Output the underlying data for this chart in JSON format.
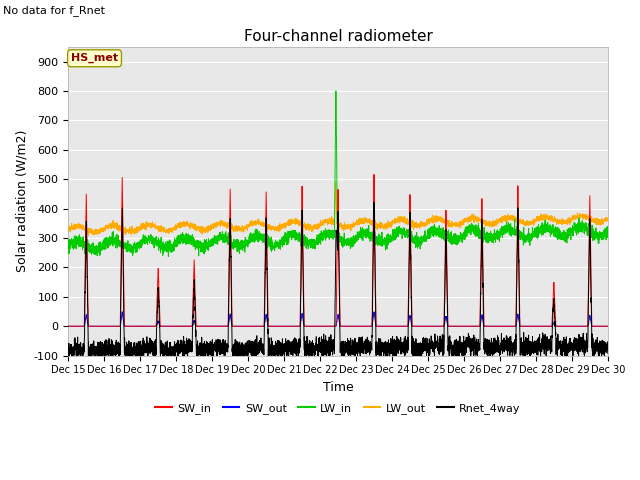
{
  "title": "Four-channel radiometer",
  "subtitle": "No data for f_Rnet",
  "ylabel": "Solar radiation (W/m2)",
  "xlabel": "Time",
  "station_label": "HS_met",
  "ylim": [
    -100,
    950
  ],
  "yticks": [
    -100,
    0,
    100,
    200,
    300,
    400,
    500,
    600,
    700,
    800,
    900
  ],
  "xtick_labels": [
    "Dec 15",
    "Dec 16",
    "Dec 17",
    "Dec 18",
    "Dec 19",
    "Dec 20",
    "Dec 21",
    "Dec 22",
    "Dec 23",
    "Dec 24",
    "Dec 25",
    "Dec 26",
    "Dec 27",
    "Dec 28",
    "Dec 29",
    "Dec 30"
  ],
  "colors": {
    "SW_in": "#ff0000",
    "SW_out": "#0000ff",
    "LW_in": "#00cc00",
    "LW_out": "#ffaa00",
    "Rnet_4way": "#000000"
  },
  "bg_color": "#e8e8e8",
  "title_fontsize": 11,
  "label_fontsize": 9,
  "tick_fontsize": 8
}
